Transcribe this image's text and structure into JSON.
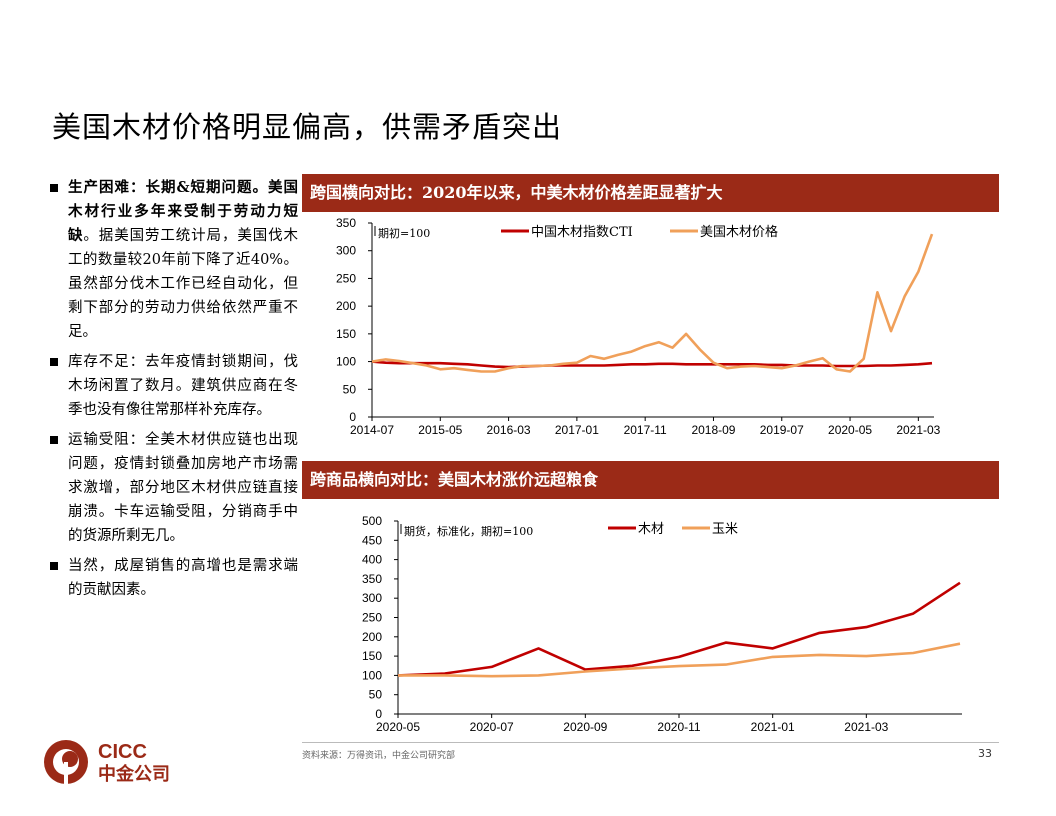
{
  "title": "美国木材价格明显偏高，供需矛盾突出",
  "bullets": [
    {
      "bold": "生产困难：长期&短期问题。美国木材行业多年来受制于劳动力短缺",
      "text": "。据美国劳工统计局，美国伐木工的数量较20年前下降了近40%。虽然部分伐木工作已经自动化，但剩下部分的劳动力供给依然严重不足。"
    },
    {
      "bold": "",
      "text": "库存不足：去年疫情封锁期间，伐木场闲置了数月。建筑供应商在冬季也没有像往常那样补充库存。"
    },
    {
      "bold": "",
      "text": "运输受阻：全美木材供应链也出现问题，疫情封锁叠加房地产市场需求激增，部分地区木材供应链直接崩溃。卡车运输受阻，分销商手中的货源所剩无几。"
    },
    {
      "bold": "",
      "text": "当然，成屋销售的高增也是需求端的贡献因素。"
    }
  ],
  "chart1_header": "跨国横向对比：2020年以来，中美木材价格差距显著扩大",
  "chart2_header": "跨商品横向对比：美国木材涨价远超粮食",
  "footer": {
    "source": "资料来源：万得资讯，中金公司研究部",
    "page": "33"
  },
  "logo": {
    "text_en": "CICC",
    "text_cn": "中金公司"
  },
  "colors": {
    "header_bg": "#9b2a17",
    "red": "#c00000",
    "orange": "#f0a05a"
  },
  "chart_data": [
    {
      "type": "line",
      "annotation": "期初=100",
      "ylim": [
        0,
        350
      ],
      "yticks": [
        0,
        50,
        100,
        150,
        200,
        250,
        300,
        350
      ],
      "xticks": [
        "2014-07",
        "2015-05",
        "2016-03",
        "2017-01",
        "2017-11",
        "2018-09",
        "2019-07",
        "2020-05",
        "2021-03"
      ],
      "x": [
        "2014-07",
        "2014-09",
        "2014-11",
        "2015-01",
        "2015-03",
        "2015-05",
        "2015-07",
        "2015-09",
        "2015-11",
        "2016-01",
        "2016-03",
        "2016-05",
        "2016-07",
        "2016-09",
        "2016-11",
        "2017-01",
        "2017-03",
        "2017-05",
        "2017-07",
        "2017-09",
        "2017-11",
        "2018-01",
        "2018-03",
        "2018-05",
        "2018-07",
        "2018-09",
        "2018-11",
        "2019-01",
        "2019-03",
        "2019-05",
        "2019-07",
        "2019-09",
        "2019-11",
        "2020-01",
        "2020-03",
        "2020-05",
        "2020-07",
        "2020-09",
        "2020-11",
        "2021-01",
        "2021-03",
        "2021-05"
      ],
      "series": [
        {
          "name": "中国木材指数CTI",
          "color": "#c00000",
          "values": [
            100,
            98,
            97,
            97,
            97,
            97,
            96,
            95,
            93,
            91,
            90,
            91,
            92,
            93,
            93,
            93,
            93,
            93,
            94,
            95,
            95,
            96,
            96,
            95,
            95,
            95,
            95,
            95,
            95,
            94,
            94,
            93,
            93,
            93,
            92,
            92,
            92,
            93,
            93,
            94,
            95,
            97
          ]
        },
        {
          "name": "美国木材价格",
          "color": "#f0a05a",
          "values": [
            100,
            104,
            101,
            97,
            93,
            86,
            88,
            85,
            82,
            82,
            88,
            92,
            92,
            93,
            96,
            98,
            110,
            105,
            112,
            118,
            128,
            135,
            125,
            150,
            122,
            98,
            88,
            91,
            92,
            90,
            88,
            93,
            100,
            106,
            86,
            82,
            105,
            225,
            155,
            218,
            262,
            330
          ]
        }
      ]
    },
    {
      "type": "line",
      "annotation": "期货，标准化，期初=100",
      "ylim": [
        0,
        500
      ],
      "yticks": [
        0,
        50,
        100,
        150,
        200,
        250,
        300,
        350,
        400,
        450,
        500
      ],
      "xticks": [
        "2020-05",
        "2020-07",
        "2020-09",
        "2020-11",
        "2021-01",
        "2021-03"
      ],
      "x": [
        "2020-05",
        "2020-06",
        "2020-07",
        "2020-08",
        "2020-09",
        "2020-10",
        "2020-11",
        "2020-12",
        "2021-01",
        "2021-02",
        "2021-03",
        "2021-04",
        "2021-05"
      ],
      "series": [
        {
          "name": "木材",
          "color": "#c00000",
          "values": [
            100,
            105,
            122,
            170,
            115,
            125,
            148,
            185,
            170,
            210,
            225,
            260,
            340
          ]
        },
        {
          "name": "玉米",
          "color": "#f0a05a",
          "values": [
            100,
            100,
            98,
            100,
            110,
            118,
            124,
            128,
            148,
            153,
            150,
            158,
            182
          ]
        }
      ]
    }
  ]
}
